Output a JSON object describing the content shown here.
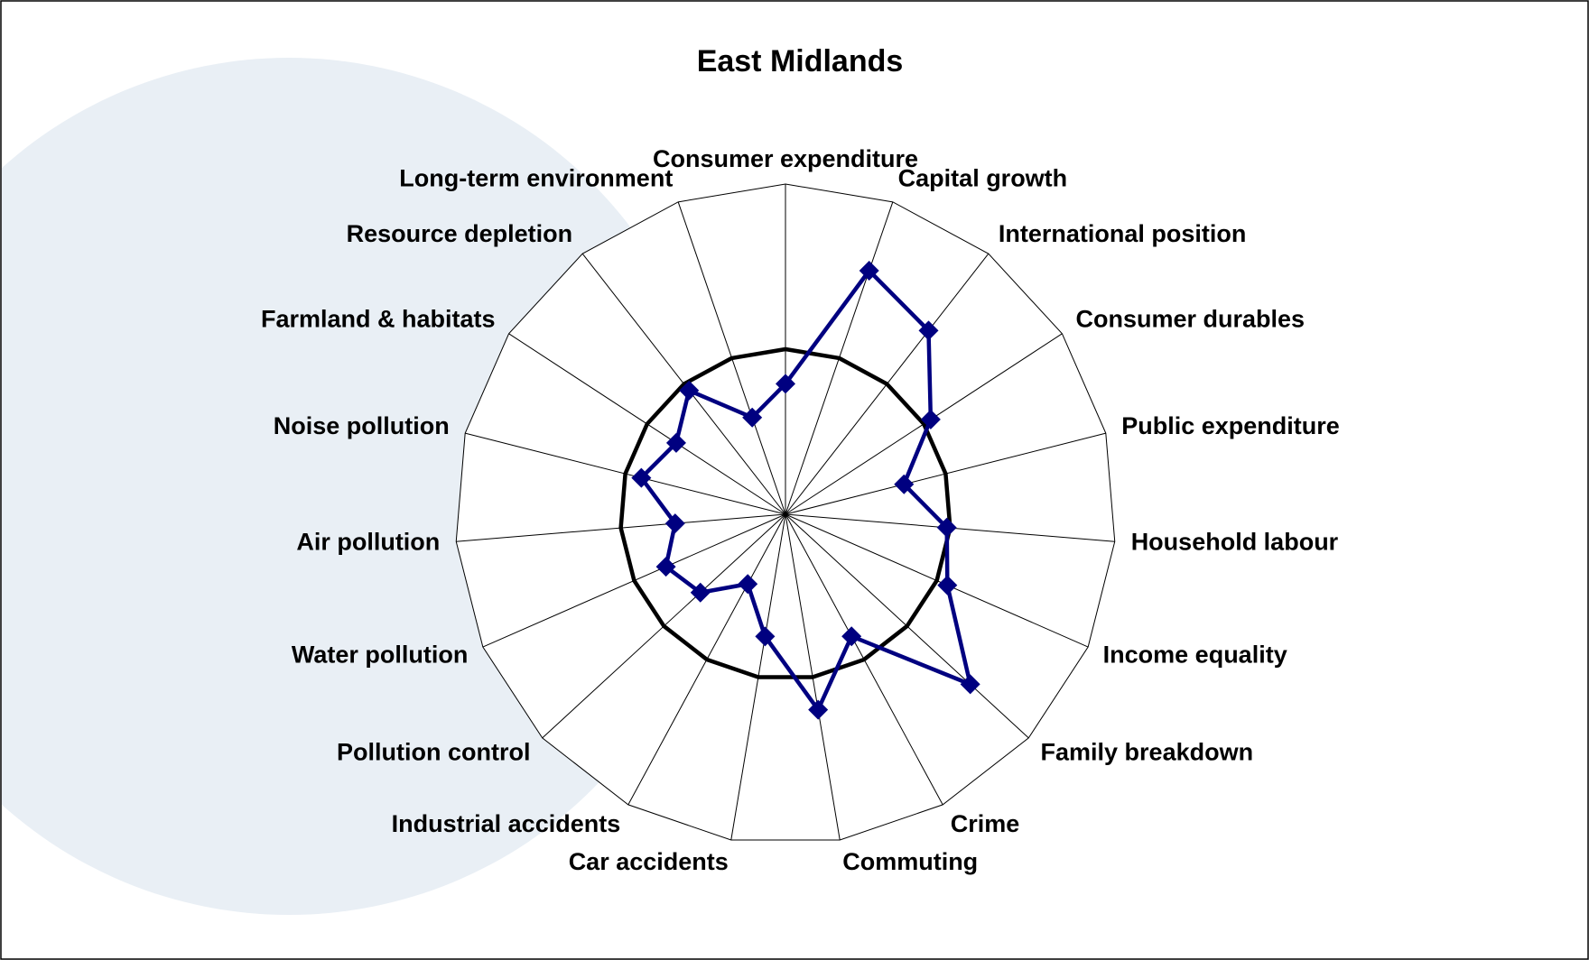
{
  "chart_data": {
    "type": "radar",
    "title": "East Midlands",
    "categories": [
      "Consumer expenditure",
      "Capital growth",
      "International position",
      "Consumer durables",
      "Public expenditure",
      "Household labour",
      "Income equality",
      "Family breakdown",
      "Crime",
      "Commuting",
      "Car accidents",
      "Industrial accidents",
      "Pollution control",
      "Water pollution",
      "Air pollution",
      "Noise pollution",
      "Farmland & habitats",
      "Resource depletion",
      "Long-term environment"
    ],
    "series": [
      {
        "color": "#000000",
        "marker": false,
        "values": [
          1,
          1,
          1,
          1,
          1,
          1,
          1,
          1,
          1,
          1,
          1,
          1,
          1,
          1,
          1,
          1,
          1,
          1,
          1
        ]
      },
      {
        "color": "#000080",
        "marker": true,
        "values": [
          0.79,
          1.56,
          1.41,
          1.05,
          0.74,
          0.98,
          1.07,
          1.52,
          0.84,
          1.2,
          0.75,
          0.48,
          0.7,
          0.79,
          0.67,
          0.9,
          0.79,
          0.95,
          0.62
        ]
      }
    ],
    "rlim": [
      0,
      2
    ]
  }
}
